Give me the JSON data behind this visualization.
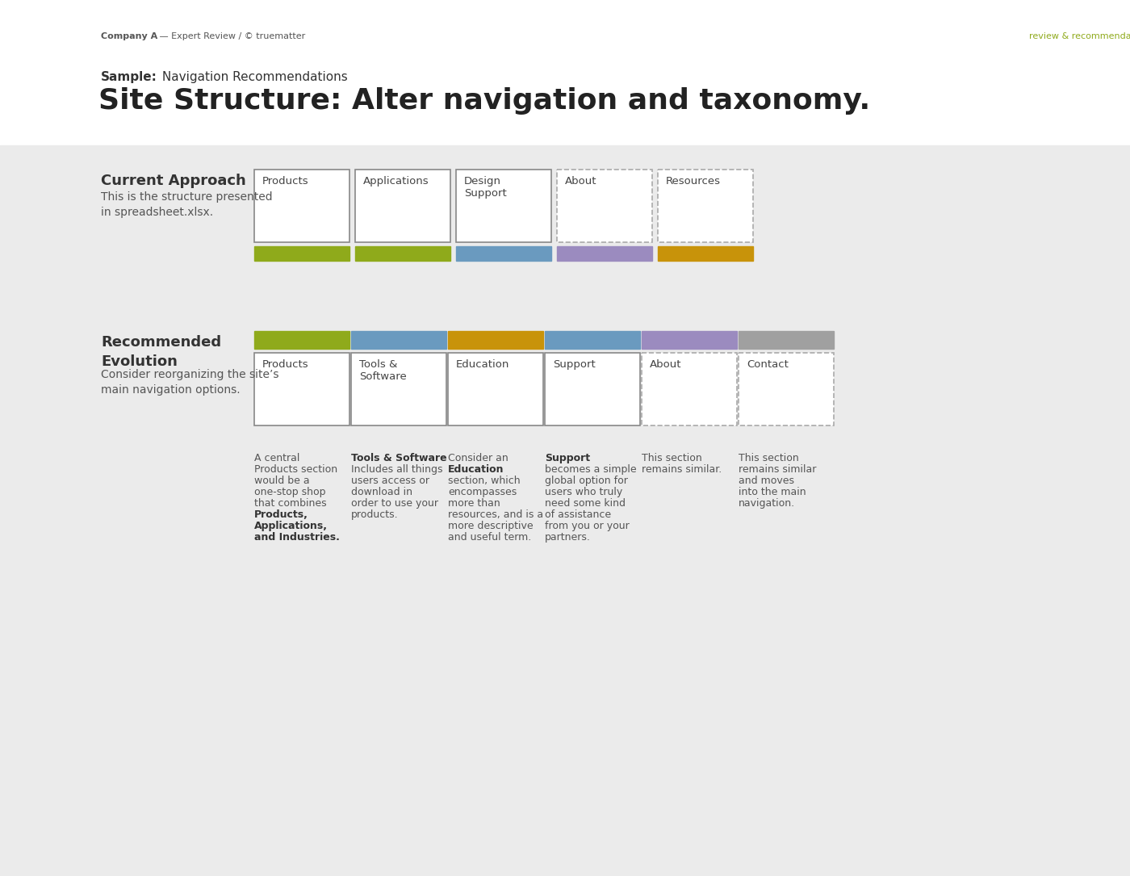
{
  "bg_top": "#ffffff",
  "bg_bottom": "#ebebeb",
  "header_left": "Company A",
  "header_left_bold": "Company A",
  "header_left_text": " — Expert Review / © truematter",
  "header_right": "review & recommendations",
  "header_right_color": "#8faa1b",
  "sample_label": "Sample:",
  "sample_label_bold": true,
  "sample_text": " Navigation Recommendations",
  "main_title": "Site Structure: Alter navigation and taxonomy.",
  "section1_title": "Current Approach",
  "section1_sub": "This is the structure presented\nin spreadsheet.xlsx.",
  "section2_title": "Recommended\nEvolution",
  "section2_sub": "Consider reorganizing the site’s\nmain navigation options.",
  "current_items": [
    "Products",
    "Applications",
    "Design\nSupport",
    "About",
    "Resources"
  ],
  "current_border_styles": [
    "solid",
    "solid",
    "solid",
    "dashed",
    "dashed"
  ],
  "current_colors": [
    "#8faa1b",
    "#8faa1b",
    "#6a9abf",
    "#9b8bbf",
    "#c8930a"
  ],
  "recommended_items": [
    "Products",
    "Tools &\nSoftware",
    "Education",
    "Support",
    "About",
    "Contact"
  ],
  "recommended_border_styles": [
    "solid",
    "solid",
    "solid",
    "solid",
    "dashed",
    "dashed"
  ],
  "recommended_colors": [
    "#8faa1b",
    "#6a9abf",
    "#c8930a",
    "#6a9abf",
    "#9b8bbf",
    "#a0a0a0"
  ],
  "descriptions": [
    "A central\nProducts section\nwould be a\none-stop shop\nthat combines\nProducts,\nApplications,\nand Industries.",
    "Tools & Software\nIncludes all things\nusers access or\ndownload in\norder to use your\nproducts.",
    "Consider an\nEducation\nsection, which\nencompasses\nmore than\nresources, and is a\nmore descriptive\nand useful term.",
    "Support\nbecomes a simple\nglobal option for\nusers who truly\nneed some kind\nof assistance\nfrom you or your\npartners.",
    "This section\nremains similar.",
    "This section\nremains similar\nand moves\ninto the main\nnavigation."
  ],
  "desc_bold_words": [
    [
      "Products,",
      "Applications,",
      "Industries."
    ],
    [
      "Tools & Software"
    ],
    [
      "Education"
    ],
    [
      "Support"
    ],
    [],
    []
  ]
}
